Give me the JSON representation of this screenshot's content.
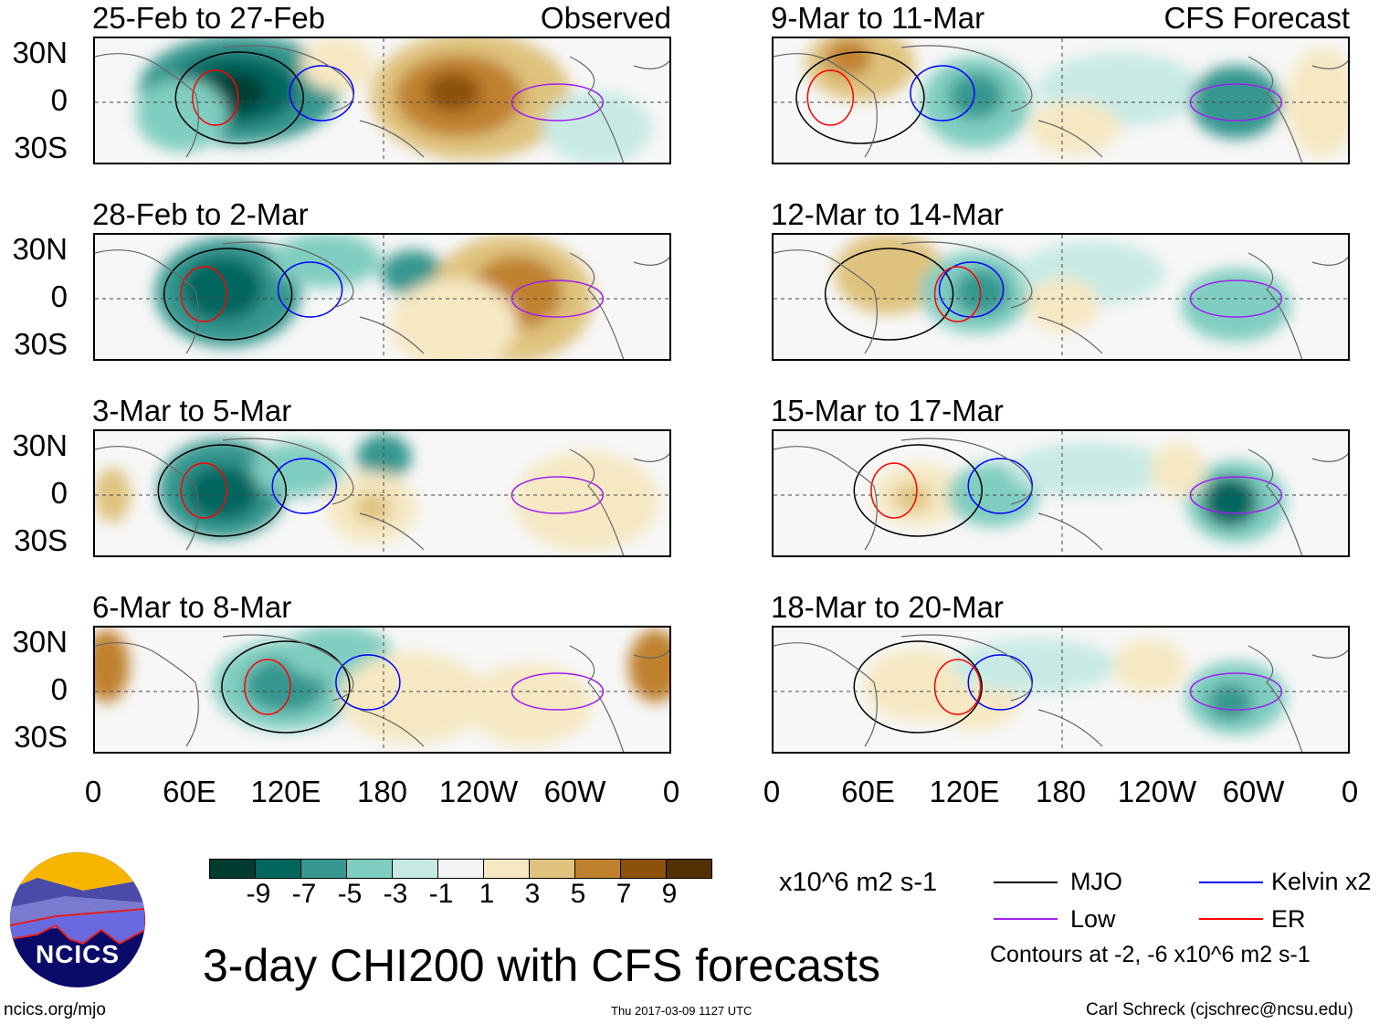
{
  "panels_left": [
    {
      "title": "25-Feb to 27-Feb",
      "label": "Observed"
    },
    {
      "title": "28-Feb to 2-Mar"
    },
    {
      "title": "3-Mar to 5-Mar"
    },
    {
      "title": "6-Mar to 8-Mar"
    }
  ],
  "panels_right": [
    {
      "title": "9-Mar to 11-Mar",
      "label": "CFS Forecast"
    },
    {
      "title": "12-Mar to 14-Mar"
    },
    {
      "title": "15-Mar to 17-Mar"
    },
    {
      "title": "18-Mar to 20-Mar"
    }
  ],
  "lat_labels": [
    "30N",
    "0",
    "30S"
  ],
  "lon_labels": [
    "0",
    "60E",
    "120E",
    "180",
    "120W",
    "60W",
    "0"
  ],
  "colorbar": {
    "colors": [
      "#003c30",
      "#01665e",
      "#35978f",
      "#80cdc1",
      "#c7eae5",
      "#f5f5f5",
      "#f6e8c3",
      "#dfc27d",
      "#bf812d",
      "#8c510a",
      "#543005"
    ],
    "labels": [
      "-9",
      "-7",
      "-5",
      "-3",
      "-1",
      "1",
      "3",
      "5",
      "7",
      "9"
    ],
    "units": "x10^6 m2 s-1"
  },
  "legend": {
    "items": [
      {
        "label": "MJO",
        "color": "#000000"
      },
      {
        "label": "Kelvin x2",
        "color": "#0000ff"
      },
      {
        "label": "Low",
        "color": "#a020f0"
      },
      {
        "label": "ER",
        "color": "#ff0000"
      }
    ],
    "note": "Contours at -2, -6 x10^6 m2 s-1"
  },
  "title": "3-day CHI200 with CFS forecasts",
  "logo_text": "NCICS",
  "footer": {
    "url": "ncics.org/mjo",
    "timestamp": "Thu 2017-03-09 1127 UTC",
    "author": "Carl Schreck (cjschrec@ncsu.edu)"
  }
}
